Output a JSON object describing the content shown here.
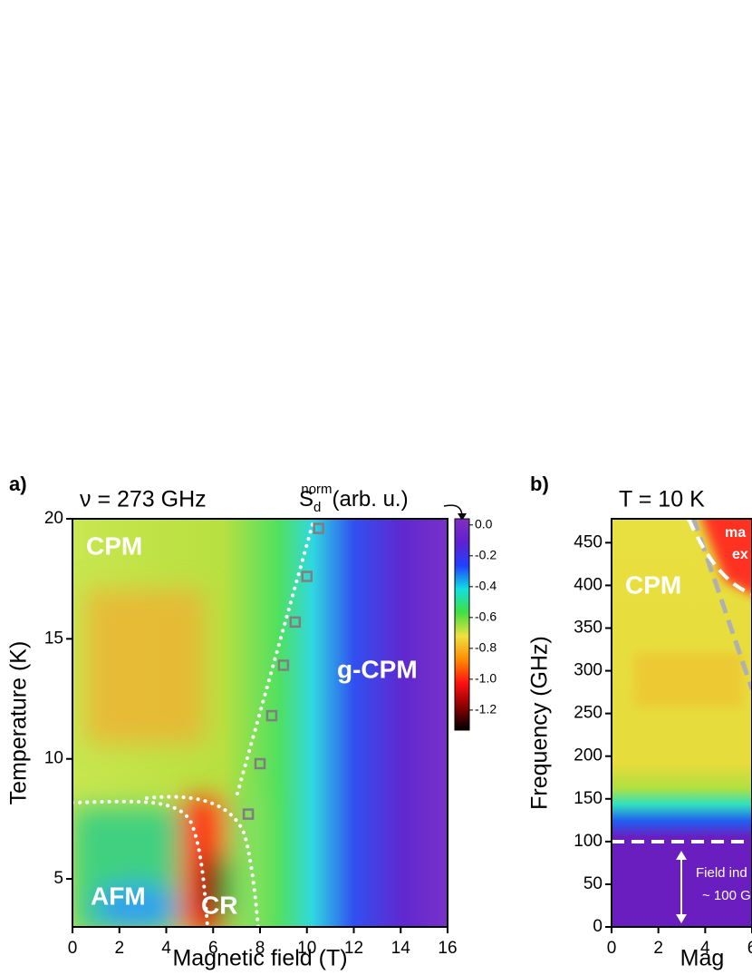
{
  "chart_data": [
    {
      "type": "heatmap",
      "panel_label": "a)",
      "title": "ν = 273 GHz",
      "x_label": "Magnetic field (T)",
      "y_label": "Temperature (K)",
      "xlim": [
        0,
        16
      ],
      "xticks": [
        0,
        2,
        4,
        6,
        8,
        10,
        12,
        14,
        16
      ],
      "ylim": [
        3,
        20
      ],
      "yticks": [
        5,
        10,
        15,
        20
      ],
      "points": {
        "marker": "square",
        "color": "#7f7f7f",
        "x": [
          7.5,
          8,
          8.5,
          9,
          9.5,
          10,
          10.5
        ],
        "y": [
          7.7,
          9.8,
          11.8,
          13.9,
          15.7,
          17.6,
          19.6
        ]
      },
      "colorbar": {
        "symbol": "S",
        "subscript": "d",
        "superscript": "norm",
        "unit": "(arb. u.)",
        "clim": [
          -1.33,
          0.04
        ],
        "ticks": [
          {
            "value": 0,
            "label": "0.0"
          },
          -0.2,
          -0.4,
          -0.6,
          -0.8,
          {
            "value": -1,
            "label": "-1.0"
          },
          -1.2
        ],
        "colormap": [
          "#000000",
          "#8b0000",
          "#ff1010",
          "#ff8c00",
          "#f0e040",
          "#40e040",
          "#10e0e0",
          "#2040ff",
          "#6020d0",
          "#8030c0"
        ]
      },
      "annotations": [
        "CPM",
        "g-CPM",
        "AFM",
        "CR"
      ]
    },
    {
      "type": "heatmap",
      "panel_label": "b)",
      "title": "T = 10 K",
      "x_label": "Mag",
      "y_label": "Frequency (GHz)",
      "xlim": [
        0,
        6
      ],
      "xticks": [
        0,
        2,
        4,
        6
      ],
      "ylim": [
        0,
        478
      ],
      "yticks": [
        0,
        50,
        100,
        150,
        200,
        250,
        300,
        350,
        400,
        450
      ],
      "annotations": [
        "CPM",
        "ma",
        "ex",
        "Field ind",
        "~ 100 G"
      ]
    }
  ]
}
